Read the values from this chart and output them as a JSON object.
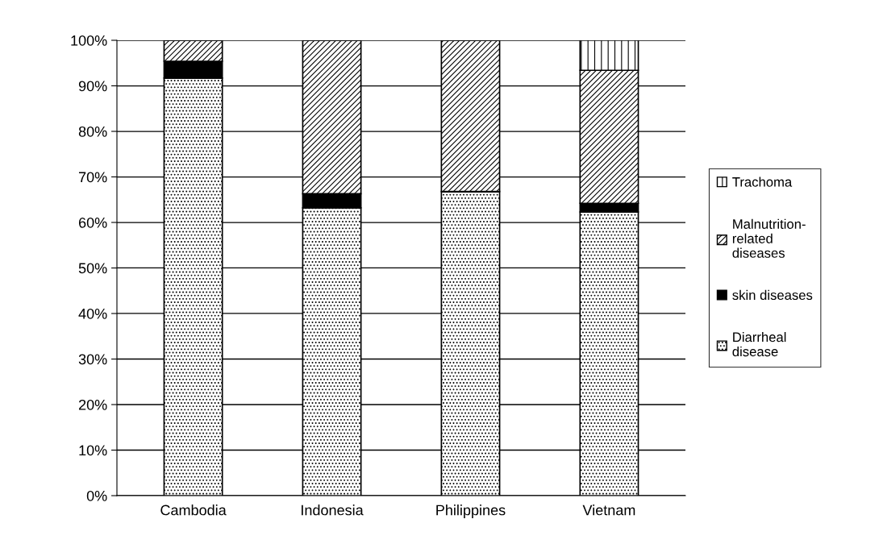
{
  "chart_data": {
    "type": "bar",
    "stacked": true,
    "categories": [
      "Cambodia",
      "Indonesia",
      "Philippines",
      "Vietnam"
    ],
    "series": [
      {
        "name": "Diarrheal disease",
        "color": "#000000",
        "values": [
          91.7,
          63.2,
          66.8,
          62.3
        ]
      },
      {
        "name": "skin diseases",
        "color": "#000000",
        "values": [
          3.7,
          3.1,
          0,
          1.9
        ]
      },
      {
        "name": "Malnutrition-related diseases",
        "color": "#000000",
        "values": [
          4.6,
          33.7,
          33.2,
          29.2
        ]
      },
      {
        "name": "Trachoma",
        "color": "#000000",
        "values": [
          0,
          0,
          0,
          6.6
        ]
      }
    ],
    "ylim": [
      0,
      100
    ],
    "yticks": [
      {
        "value": 0,
        "label": "0%"
      },
      {
        "value": 10,
        "label": "10%"
      },
      {
        "value": 20,
        "label": "20%"
      },
      {
        "value": 30,
        "label": "30%"
      },
      {
        "value": 40,
        "label": "40%"
      },
      {
        "value": 50,
        "label": "50%"
      },
      {
        "value": 60,
        "label": "60%"
      },
      {
        "value": 70,
        "label": "70%"
      },
      {
        "value": 80,
        "label": "80%"
      },
      {
        "value": 90,
        "label": "90%"
      },
      {
        "value": 100,
        "label": "100%"
      }
    ],
    "grid": "y",
    "legend": "right"
  }
}
